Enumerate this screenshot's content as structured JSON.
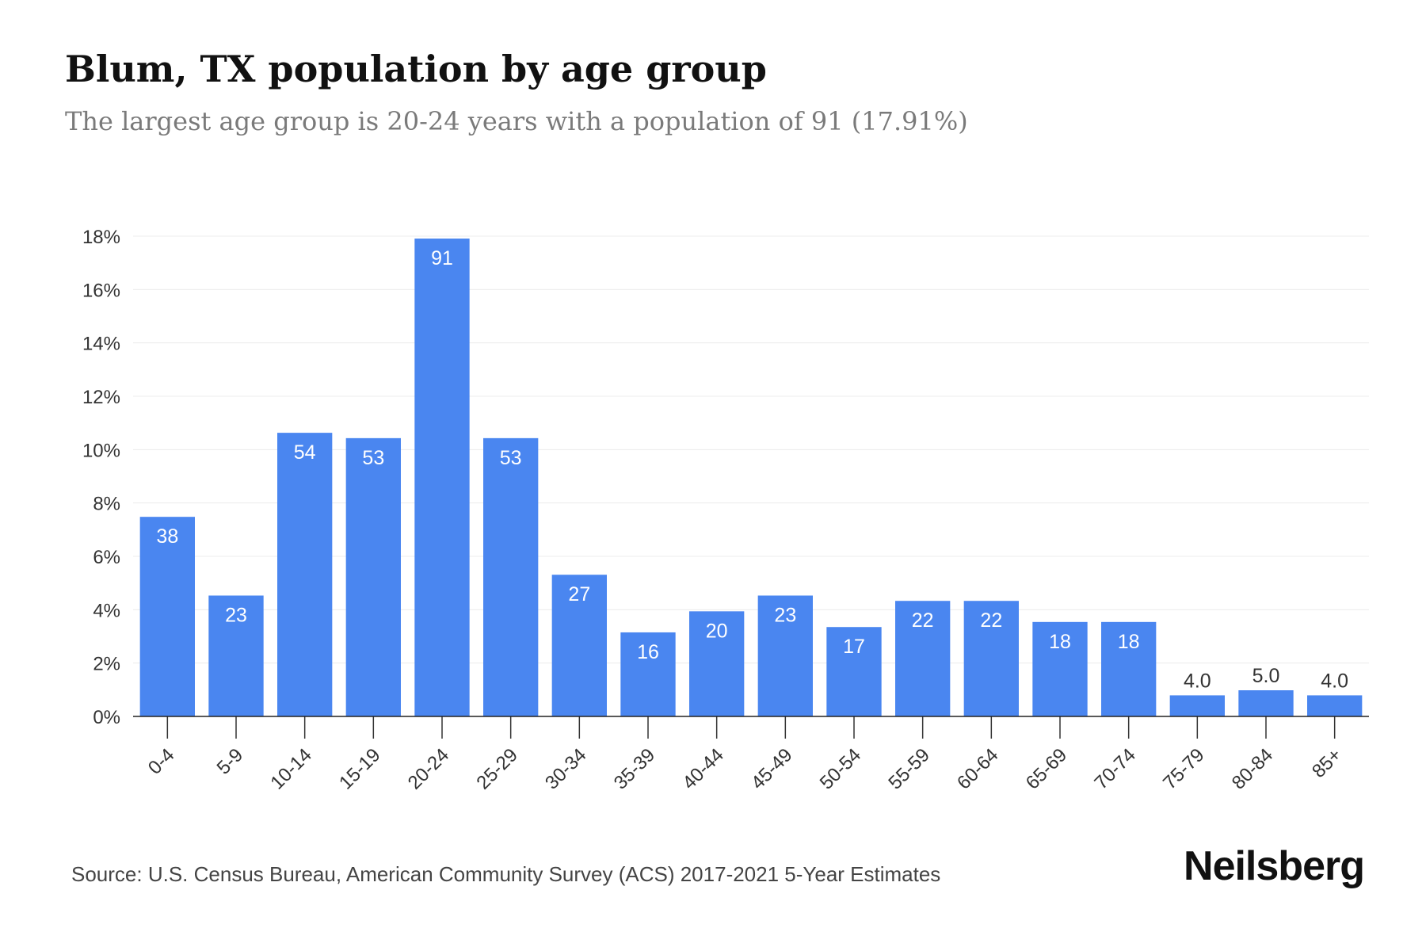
{
  "chart_data": {
    "type": "bar",
    "title": "Blum, TX population by age group",
    "subtitle": "The largest age group is 20-24 years with a population of 91 (17.91%)",
    "categories": [
      "0-4",
      "5-9",
      "10-14",
      "15-19",
      "20-24",
      "25-29",
      "30-34",
      "35-39",
      "40-44",
      "45-49",
      "50-54",
      "55-59",
      "60-64",
      "65-69",
      "70-74",
      "75-79",
      "80-84",
      "85+"
    ],
    "values": [
      7.48,
      4.53,
      10.63,
      10.43,
      17.91,
      10.43,
      5.31,
      3.15,
      3.94,
      4.53,
      3.35,
      4.33,
      4.33,
      3.54,
      3.54,
      0.79,
      0.98,
      0.79
    ],
    "data_labels": [
      "38",
      "23",
      "54",
      "53",
      "91",
      "53",
      "27",
      "16",
      "20",
      "23",
      "17",
      "22",
      "22",
      "18",
      "18",
      "4.0",
      "5.0",
      "4.0"
    ],
    "ylim": [
      0,
      18
    ],
    "yticks": [
      0,
      2,
      4,
      6,
      8,
      10,
      12,
      14,
      16,
      18
    ],
    "ytick_labels": [
      "0%",
      "2%",
      "4%",
      "6%",
      "8%",
      "10%",
      "12%",
      "14%",
      "16%",
      "18%"
    ],
    "xlabel": "",
    "ylabel": "",
    "grid": true,
    "bar_color": "#4a86f0"
  },
  "footer": {
    "source": "Source: U.S. Census Bureau, American Community Survey (ACS) 2017-2021 5-Year Estimates",
    "brand": "Neilsberg"
  }
}
